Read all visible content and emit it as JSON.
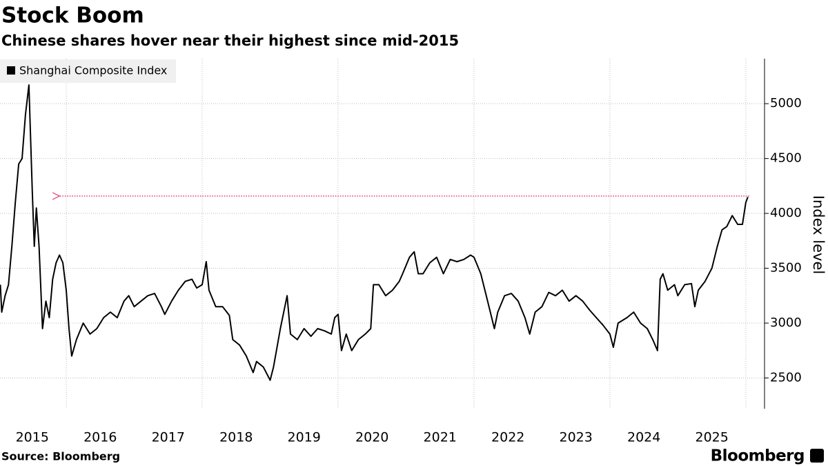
{
  "chart_data": {
    "type": "line",
    "title": "Stock Boom",
    "subtitle": "Chinese shares hover near their highest since mid-2015",
    "y_label": "Index level",
    "source": "Source: Bloomberg",
    "brand": "Bloomberg",
    "series": [
      {
        "name": "Shanghai Composite Index",
        "color": "#000000",
        "x": [
          2015.03,
          2015.05,
          2015.1,
          2015.15,
          2015.2,
          2015.25,
          2015.3,
          2015.35,
          2015.4,
          2015.45,
          2015.5,
          2015.53,
          2015.56,
          2015.6,
          2015.65,
          2015.7,
          2015.75,
          2015.8,
          2015.85,
          2015.9,
          2015.95,
          2016.0,
          2016.04,
          2016.08,
          2016.15,
          2016.25,
          2016.35,
          2016.45,
          2016.55,
          2016.65,
          2016.75,
          2016.85,
          2016.92,
          2017.0,
          2017.1,
          2017.2,
          2017.3,
          2017.4,
          2017.45,
          2017.55,
          2017.65,
          2017.75,
          2017.85,
          2017.92,
          2018.0,
          2018.06,
          2018.1,
          2018.2,
          2018.3,
          2018.4,
          2018.45,
          2018.55,
          2018.65,
          2018.75,
          2018.8,
          2018.9,
          2019.0,
          2019.05,
          2019.15,
          2019.25,
          2019.3,
          2019.4,
          2019.5,
          2019.6,
          2019.7,
          2019.8,
          2019.9,
          2019.95,
          2020.0,
          2020.05,
          2020.12,
          2020.2,
          2020.3,
          2020.4,
          2020.48,
          2020.52,
          2020.6,
          2020.7,
          2020.8,
          2020.9,
          2020.95,
          2021.05,
          2021.12,
          2021.18,
          2021.25,
          2021.35,
          2021.45,
          2021.55,
          2021.65,
          2021.75,
          2021.85,
          2021.95,
          2022.0,
          2022.1,
          2022.2,
          2022.3,
          2022.35,
          2022.45,
          2022.55,
          2022.65,
          2022.75,
          2022.82,
          2022.9,
          2023.0,
          2023.1,
          2023.2,
          2023.3,
          2023.4,
          2023.5,
          2023.6,
          2023.7,
          2023.8,
          2023.9,
          2024.0,
          2024.05,
          2024.12,
          2024.25,
          2024.35,
          2024.45,
          2024.55,
          2024.63,
          2024.7,
          2024.74,
          2024.78,
          2024.85,
          2024.95,
          2025.0,
          2025.1,
          2025.2,
          2025.25,
          2025.3,
          2025.4,
          2025.5,
          2025.58,
          2025.65,
          2025.72,
          2025.8,
          2025.88,
          2025.95,
          2026.0,
          2026.03
        ],
        "values": [
          3350,
          3100,
          3250,
          3350,
          3700,
          4100,
          4450,
          4500,
          4900,
          5170,
          4200,
          3700,
          4050,
          3700,
          2950,
          3200,
          3050,
          3400,
          3550,
          3620,
          3550,
          3300,
          2950,
          2700,
          2850,
          3000,
          2900,
          2950,
          3050,
          3100,
          3050,
          3200,
          3250,
          3150,
          3200,
          3250,
          3270,
          3150,
          3080,
          3200,
          3300,
          3380,
          3400,
          3320,
          3350,
          3560,
          3300,
          3150,
          3150,
          3070,
          2850,
          2800,
          2700,
          2550,
          2650,
          2600,
          2480,
          2600,
          2950,
          3250,
          2900,
          2850,
          2950,
          2880,
          2950,
          2930,
          2900,
          3050,
          3080,
          2750,
          2900,
          2750,
          2850,
          2900,
          2950,
          3350,
          3350,
          3250,
          3300,
          3380,
          3450,
          3600,
          3650,
          3450,
          3450,
          3550,
          3600,
          3450,
          3580,
          3560,
          3580,
          3620,
          3600,
          3450,
          3200,
          2950,
          3100,
          3250,
          3270,
          3200,
          3050,
          2900,
          3100,
          3150,
          3280,
          3250,
          3300,
          3200,
          3250,
          3200,
          3120,
          3050,
          2980,
          2900,
          2780,
          3000,
          3050,
          3100,
          3000,
          2950,
          2850,
          2750,
          3400,
          3450,
          3300,
          3350,
          3250,
          3350,
          3360,
          3150,
          3300,
          3380,
          3500,
          3700,
          3850,
          3880,
          3980,
          3900,
          3900,
          4100,
          4150
        ]
      }
    ],
    "reference_line": {
      "value": 4158,
      "x": [
        2015.9,
        2026.05
      ],
      "color": "#e0366e"
    },
    "xlim": [
      2015.025,
      2026.275
    ],
    "xticks": [
      {
        "value": 2015.5,
        "label": "2015"
      },
      {
        "value": 2016.5,
        "label": "2016"
      },
      {
        "value": 2017.5,
        "label": "2017"
      },
      {
        "value": 2018.5,
        "label": "2018"
      },
      {
        "value": 2019.5,
        "label": "2019"
      },
      {
        "value": 2020.5,
        "label": "2020"
      },
      {
        "value": 2021.5,
        "label": "2021"
      },
      {
        "value": 2022.5,
        "label": "2022"
      },
      {
        "value": 2023.5,
        "label": "2023"
      },
      {
        "value": 2024.5,
        "label": "2024"
      },
      {
        "value": 2025.5,
        "label": "2025"
      }
    ],
    "xgrid": [
      2016,
      2018,
      2020,
      2022,
      2024,
      2026
    ],
    "ylim": [
      2220,
      5410
    ],
    "yticks": [
      2500,
      3000,
      3500,
      4000,
      4500,
      5000
    ],
    "grid": true,
    "legend": "top-left"
  }
}
